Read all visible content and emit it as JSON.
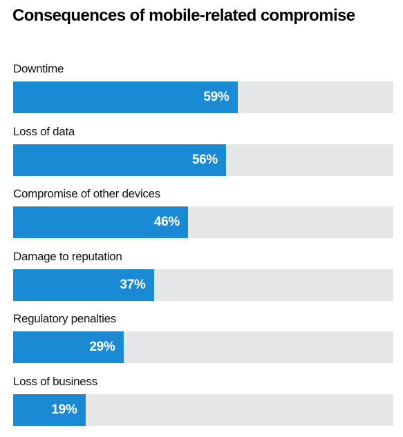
{
  "chart_data": {
    "type": "bar",
    "orientation": "horizontal",
    "title": "Consequences of mobile-related compromise",
    "categories": [
      "Downtime",
      "Loss of data",
      "Compromise of other devices",
      "Damage to reputation",
      "Regulatory penalties",
      "Loss of business"
    ],
    "values": [
      59,
      56,
      46,
      37,
      29,
      19
    ],
    "value_labels": [
      "59%",
      "56%",
      "46%",
      "37%",
      "29%",
      "19%"
    ],
    "xlim": [
      0,
      100
    ],
    "grid": false,
    "legend": "none",
    "colors": {
      "bar": "#1a8ad4",
      "track": "#e5e6e8",
      "value_text": "#ffffff",
      "title": "#000000"
    }
  }
}
